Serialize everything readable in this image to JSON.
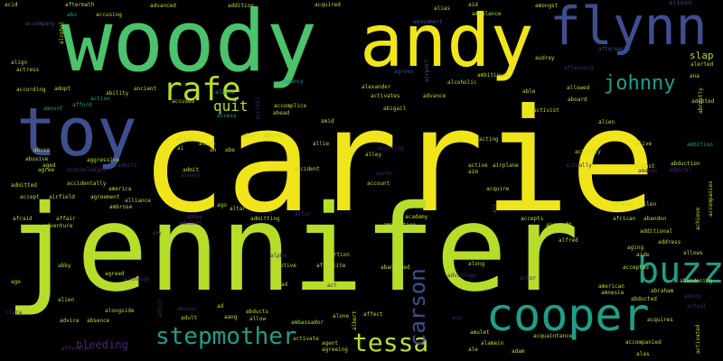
{
  "palette": {
    "yellow": "#f0e51a",
    "lime": "#b6dd2a",
    "green": "#4bc26c",
    "teal": "#1f9e89",
    "blue": "#3f4e8f",
    "indigo": "#482475"
  },
  "words": [
    {
      "text": "carrie",
      "color": "#f0e51a"
    },
    {
      "text": "jennifer",
      "color": "#b6dd2a"
    },
    {
      "text": "woody",
      "color": "#4bc26c"
    },
    {
      "text": "andy",
      "color": "#f0e51a"
    },
    {
      "text": "flynn",
      "color": "#3f4e8f"
    },
    {
      "text": "toy",
      "color": "#3f4e8f"
    },
    {
      "text": "cooper",
      "color": "#1f9e89"
    },
    {
      "text": "buzz",
      "color": "#1f9e89"
    },
    {
      "text": "rafe",
      "color": "#b6dd2a"
    },
    {
      "text": "johnny",
      "color": "#1f9e89"
    },
    {
      "text": "stepmother",
      "color": "#1f9e89"
    },
    {
      "text": "tessa",
      "color": "#b6dd2a"
    },
    {
      "text": "carson",
      "color": "#3f4e8f"
    },
    {
      "text": "quit",
      "color": "#b6dd2a"
    },
    {
      "text": "bleeding",
      "color": "#482475"
    },
    {
      "text": "slap",
      "color": "#b6dd2a"
    },
    {
      "text": "accident",
      "color": "#b6dd2a"
    },
    {
      "text": "acid",
      "color": "#b6dd2a"
    },
    {
      "text": "aftermath",
      "color": "#b6dd2a"
    },
    {
      "text": "advanced",
      "color": "#b6dd2a"
    },
    {
      "text": "addition",
      "color": "#b6dd2a"
    },
    {
      "text": "acquired",
      "color": "#b6dd2a"
    },
    {
      "text": "aid",
      "color": "#b6dd2a"
    },
    {
      "text": "amongst",
      "color": "#b6dd2a"
    },
    {
      "text": "alison",
      "color": "#3f4e8f"
    },
    {
      "text": "abu",
      "color": "#1f9e89"
    },
    {
      "text": "accusing",
      "color": "#b6dd2a"
    },
    {
      "text": "alias",
      "color": "#b6dd2a"
    },
    {
      "text": "ambulance",
      "color": "#b6dd2a"
    },
    {
      "text": "accompany",
      "color": "#3f4e8f"
    },
    {
      "text": "amusement",
      "color": "#3f4e8f"
    },
    {
      "text": "alcohol",
      "color": "#b6dd2a"
    },
    {
      "text": "airport",
      "color": "#3f4e8f"
    },
    {
      "text": "afterward",
      "color": "#482475"
    },
    {
      "text": "afterwards",
      "color": "#3f4e8f"
    },
    {
      "text": "align",
      "color": "#b6dd2a"
    },
    {
      "text": "actress",
      "color": "#b6dd2a"
    },
    {
      "text": "agrees",
      "color": "#3f4e8f"
    },
    {
      "text": "audrey",
      "color": "#b6dd2a"
    },
    {
      "text": "alerted",
      "color": "#b6dd2a"
    },
    {
      "text": "ambitious",
      "color": "#b6dd2a"
    },
    {
      "text": "alcoholic",
      "color": "#b6dd2a"
    },
    {
      "text": "alexander",
      "color": "#b6dd2a"
    },
    {
      "text": "agency",
      "color": "#1f9e89"
    },
    {
      "text": "adopt",
      "color": "#b6dd2a"
    },
    {
      "text": "according",
      "color": "#b6dd2a"
    },
    {
      "text": "ancient",
      "color": "#b6dd2a"
    },
    {
      "text": "ability",
      "color": "#b6dd2a"
    },
    {
      "text": "action",
      "color": "#1f9e89"
    },
    {
      "text": "afford",
      "color": "#1f9e89"
    },
    {
      "text": "amount",
      "color": "#1f9e89"
    },
    {
      "text": "accused",
      "color": "#b6dd2a"
    },
    {
      "text": "accomplice",
      "color": "#b6dd2a"
    },
    {
      "text": "activates",
      "color": "#b6dd2a"
    },
    {
      "text": "advance",
      "color": "#b6dd2a"
    },
    {
      "text": "abigail",
      "color": "#b6dd2a"
    },
    {
      "text": "aboard",
      "color": "#b6dd2a"
    },
    {
      "text": "activist",
      "color": "#b6dd2a"
    },
    {
      "text": "adopted",
      "color": "#b6dd2a"
    },
    {
      "text": "abruptly",
      "color": "#b6dd2a"
    },
    {
      "text": "allowed",
      "color": "#b6dd2a"
    },
    {
      "text": "able",
      "color": "#b6dd2a"
    },
    {
      "text": "alaska",
      "color": "#1f9e89"
    },
    {
      "text": "ana",
      "color": "#b6dd2a"
    },
    {
      "text": "alien",
      "color": "#b6dd2a"
    },
    {
      "text": "access",
      "color": "#1f9e89"
    },
    {
      "text": "amid",
      "color": "#b6dd2a"
    },
    {
      "text": "arrival",
      "color": "#482475"
    },
    {
      "text": "acting",
      "color": "#b6dd2a"
    },
    {
      "text": "ambition",
      "color": "#1f9e89"
    },
    {
      "text": "aggressive",
      "color": "#b6dd2a"
    },
    {
      "text": "alive",
      "color": "#b6dd2a"
    },
    {
      "text": "alert",
      "color": "#b6dd2a"
    },
    {
      "text": "ahead",
      "color": "#b6dd2a"
    },
    {
      "text": "also",
      "color": "#b6dd2a"
    },
    {
      "text": "adding",
      "color": "#b6dd2a"
    },
    {
      "text": "allie",
      "color": "#b6dd2a"
    },
    {
      "text": "alice",
      "color": "#b6dd2a"
    },
    {
      "text": "ai",
      "color": "#b6dd2a"
    },
    {
      "text": "ah",
      "color": "#b6dd2a"
    },
    {
      "text": "abe",
      "color": "#b6dd2a"
    },
    {
      "text": "alley",
      "color": "#b6dd2a"
    },
    {
      "text": "alerting",
      "color": "#482475"
    },
    {
      "text": "activity",
      "color": "#b6dd2a"
    },
    {
      "text": "abuse",
      "color": "#b6dd2a"
    },
    {
      "text": "abusive",
      "color": "#b6dd2a"
    },
    {
      "text": "aged",
      "color": "#b6dd2a"
    },
    {
      "text": "agree",
      "color": "#b6dd2a"
    },
    {
      "text": "acknowledges",
      "color": "#482475"
    },
    {
      "text": "admits",
      "color": "#482475"
    },
    {
      "text": "admit",
      "color": "#b6dd2a"
    },
    {
      "text": "always",
      "color": "#482475"
    },
    {
      "text": "active",
      "color": "#b6dd2a"
    },
    {
      "text": "airplane",
      "color": "#b6dd2a"
    },
    {
      "text": "aim",
      "color": "#b6dd2a"
    },
    {
      "text": "actually",
      "color": "#482475"
    },
    {
      "text": "almost",
      "color": "#b6dd2a"
    },
    {
      "text": "abduction",
      "color": "#b6dd2a"
    },
    {
      "text": "admiral",
      "color": "#482475"
    },
    {
      "text": "amends",
      "color": "#482475"
    },
    {
      "text": "aaron",
      "color": "#482475"
    },
    {
      "text": "account",
      "color": "#b6dd2a"
    },
    {
      "text": "acquire",
      "color": "#b6dd2a"
    },
    {
      "text": "accidentally",
      "color": "#b6dd2a"
    },
    {
      "text": "america",
      "color": "#b6dd2a"
    },
    {
      "text": "admitted",
      "color": "#b6dd2a"
    },
    {
      "text": "accept",
      "color": "#b6dd2a"
    },
    {
      "text": "airfield",
      "color": "#b6dd2a"
    },
    {
      "text": "agreement",
      "color": "#b6dd2a"
    },
    {
      "text": "alliance",
      "color": "#b6dd2a"
    },
    {
      "text": "ambrose",
      "color": "#b6dd2a"
    },
    {
      "text": "already",
      "color": "#b6dd2a"
    },
    {
      "text": "allen",
      "color": "#b6dd2a"
    },
    {
      "text": "achieve",
      "color": "#b6dd2a"
    },
    {
      "text": "accompanies",
      "color": "#b6dd2a"
    },
    {
      "text": "ago",
      "color": "#b6dd2a"
    },
    {
      "text": "altar",
      "color": "#b6dd2a"
    },
    {
      "text": "afraid",
      "color": "#b6dd2a"
    },
    {
      "text": "affair",
      "color": "#b6dd2a"
    },
    {
      "text": "adventure",
      "color": "#b6dd2a"
    },
    {
      "text": "abbey",
      "color": "#482475"
    },
    {
      "text": "advises",
      "color": "#482475"
    },
    {
      "text": "admitting",
      "color": "#b6dd2a"
    },
    {
      "text": "alter",
      "color": "#482475"
    },
    {
      "text": "ambush",
      "color": "#b6dd2a"
    },
    {
      "text": "academy",
      "color": "#b6dd2a"
    },
    {
      "text": "ammunition",
      "color": "#b6dd2a"
    },
    {
      "text": "air",
      "color": "#3f4e8f"
    },
    {
      "text": "accepts",
      "color": "#b6dd2a"
    },
    {
      "text": "aircraft",
      "color": "#b6dd2a"
    },
    {
      "text": "african",
      "color": "#b6dd2a"
    },
    {
      "text": "abandon",
      "color": "#b6dd2a"
    },
    {
      "text": "additional",
      "color": "#b6dd2a"
    },
    {
      "text": "alfred",
      "color": "#b6dd2a"
    },
    {
      "text": "aging",
      "color": "#b6dd2a"
    },
    {
      "text": "aide",
      "color": "#b6dd2a"
    },
    {
      "text": "allows",
      "color": "#b6dd2a"
    },
    {
      "text": "address",
      "color": "#b6dd2a"
    },
    {
      "text": "abby",
      "color": "#b6dd2a"
    },
    {
      "text": "amy",
      "color": "#482475"
    },
    {
      "text": "along",
      "color": "#b6dd2a"
    },
    {
      "text": "accepted",
      "color": "#b6dd2a"
    },
    {
      "text": "abandoning",
      "color": "#b6dd2a"
    },
    {
      "text": "alpha",
      "color": "#482475"
    },
    {
      "text": "adoptive",
      "color": "#b6dd2a"
    },
    {
      "text": "abortion",
      "color": "#b6dd2a"
    },
    {
      "text": "aftercite",
      "color": "#b6dd2a"
    },
    {
      "text": "age",
      "color": "#b6dd2a"
    },
    {
      "text": "agreed",
      "color": "#b6dd2a"
    },
    {
      "text": "although",
      "color": "#482475"
    },
    {
      "text": "alien",
      "color": "#b6dd2a"
    },
    {
      "text": "advantage",
      "color": "#482475"
    },
    {
      "text": "actor",
      "color": "#482475"
    },
    {
      "text": "american",
      "color": "#b6dd2a"
    },
    {
      "text": "amnesia",
      "color": "#b6dd2a"
    },
    {
      "text": "abraham",
      "color": "#b6dd2a"
    },
    {
      "text": "among",
      "color": "#482475"
    },
    {
      "text": "abducted",
      "color": "#b6dd2a"
    },
    {
      "text": "actual",
      "color": "#482475"
    },
    {
      "text": "abandoned",
      "color": "#b6dd2a"
    },
    {
      "text": "act",
      "color": "#482475"
    },
    {
      "text": "ahead",
      "color": "#b6dd2a"
    },
    {
      "text": "addict",
      "color": "#482475"
    },
    {
      "text": "aboves",
      "color": "#482475"
    },
    {
      "text": "alongside",
      "color": "#b6dd2a"
    },
    {
      "text": "advice",
      "color": "#b6dd2a"
    },
    {
      "text": "absence",
      "color": "#b6dd2a"
    },
    {
      "text": "adult",
      "color": "#b6dd2a"
    },
    {
      "text": "ad",
      "color": "#b6dd2a"
    },
    {
      "text": "aang",
      "color": "#b6dd2a"
    },
    {
      "text": "abducts",
      "color": "#b6dd2a"
    },
    {
      "text": "allow",
      "color": "#b6dd2a"
    },
    {
      "text": "ambassador",
      "color": "#b6dd2a"
    },
    {
      "text": "alone",
      "color": "#b6dd2a"
    },
    {
      "text": "albert",
      "color": "#b6dd2a"
    },
    {
      "text": "affect",
      "color": "#b6dd2a"
    },
    {
      "text": "ace",
      "color": "#482475"
    },
    {
      "text": "adam",
      "color": "#b6dd2a"
    },
    {
      "text": "acquires",
      "color": "#b6dd2a"
    },
    {
      "text": "accompanied",
      "color": "#b6dd2a"
    },
    {
      "text": "activated",
      "color": "#b6dd2a"
    },
    {
      "text": "clara",
      "color": "#482475"
    },
    {
      "text": "affection",
      "color": "#482475"
    },
    {
      "text": "activate",
      "color": "#b6dd2a"
    },
    {
      "text": "agent",
      "color": "#b6dd2a"
    },
    {
      "text": "agreeing",
      "color": "#b6dd2a"
    },
    {
      "text": "amulet",
      "color": "#b6dd2a"
    },
    {
      "text": "alamein",
      "color": "#b6dd2a"
    },
    {
      "text": "acquaintance",
      "color": "#b6dd2a"
    },
    {
      "text": "ale",
      "color": "#b6dd2a"
    },
    {
      "text": "alas",
      "color": "#b6dd2a"
    }
  ]
}
